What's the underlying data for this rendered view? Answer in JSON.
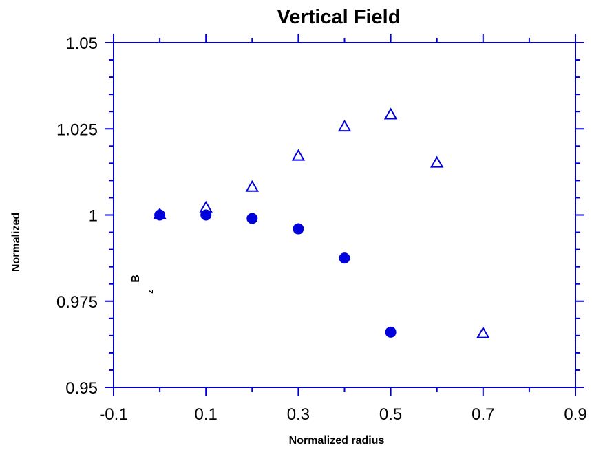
{
  "chart_data": {
    "type": "scatter",
    "title": "Vertical Field",
    "xlabel": "Normalized radius",
    "ylabel": "Normalized",
    "annotation": {
      "main": "B",
      "sub": "z"
    },
    "xlim": [
      -0.1,
      0.9
    ],
    "ylim": [
      0.95,
      1.05
    ],
    "xticks": [
      "-0.1",
      "0.1",
      "0.3",
      "0.5",
      "0.7",
      "0.9"
    ],
    "yticks": [
      "0.95",
      "0.975",
      "1",
      "1.025",
      "1.05"
    ],
    "grid": false,
    "axis_color": "#0000c8",
    "marker_color": "#0000dc",
    "series": [
      {
        "marker": "circle-filled",
        "x": [
          0.0,
          0.1,
          0.2,
          0.3,
          0.4,
          0.5
        ],
        "y": [
          1.0,
          1.0,
          0.999,
          0.996,
          0.9875,
          0.966
        ]
      },
      {
        "marker": "triangle-open",
        "x": [
          0.0,
          0.1,
          0.2,
          0.3,
          0.4,
          0.5,
          0.6,
          0.7
        ],
        "y": [
          1.0,
          1.002,
          1.008,
          1.017,
          1.0255,
          1.029,
          1.015,
          0.9655
        ]
      }
    ]
  }
}
